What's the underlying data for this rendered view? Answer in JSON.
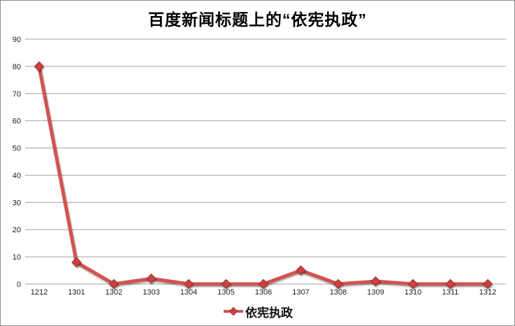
{
  "chart_data": {
    "type": "line",
    "title": "百度新闻标题上的“依宪执政”",
    "categories": [
      "1212",
      "1301",
      "1302",
      "1303",
      "1304",
      "1305",
      "1306",
      "1307",
      "1308",
      "1309",
      "1310",
      "1311",
      "1312"
    ],
    "series": [
      {
        "name": "依宪执政",
        "values": [
          80,
          8,
          0,
          2,
          0,
          0,
          0,
          5,
          0,
          1,
          0,
          0,
          0
        ],
        "color": "#d25350",
        "marker": "diamond",
        "marker_fill": "#cc4341",
        "marker_stroke": "#a33634"
      }
    ],
    "xlabel": "",
    "ylabel": "",
    "ylim": [
      0,
      90
    ],
    "ytick_step": 10,
    "grid": true,
    "gridline_color": "#a3a3a3",
    "axis_label_color": "#1c1c1c",
    "legend_position": "bottom"
  }
}
